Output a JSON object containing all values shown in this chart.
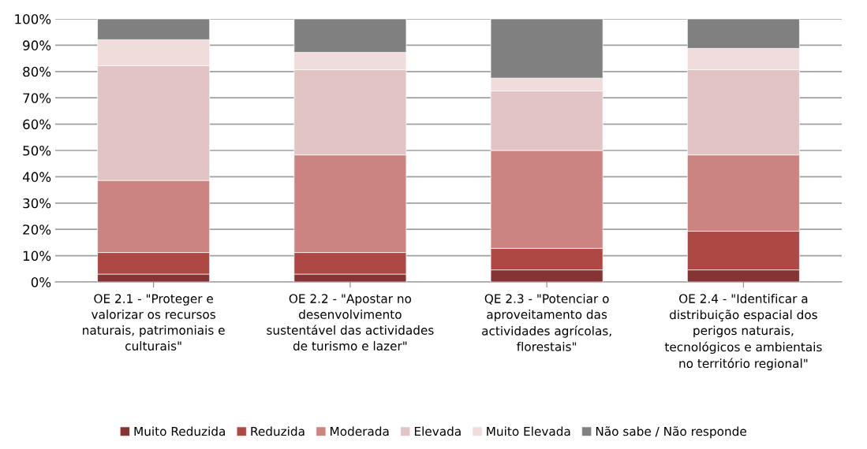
{
  "chart_data": {
    "type": "bar",
    "stacked": true,
    "categories": [
      "OE 2.1 - \"Proteger e valorizar os recursos naturais, patrimoniais e culturais\"",
      "OE 2.2 - \"Apostar no desenvolvimento sustentável das actividades de turismo e lazer\"",
      "QE 2.3 - \"Potenciar o aproveitamento das actividades agrícolas, florestais\"",
      "OE 2.4 - \"Identificar a distribuição espacial dos perigos naturais, tecnológicos e ambientais no território regional\""
    ],
    "series": [
      {
        "name": "Muito Reduzida",
        "color": "#853333",
        "values": [
          3.0,
          3.0,
          4.6,
          4.6
        ]
      },
      {
        "name": "Reduzida",
        "color": "#ae4845",
        "values": [
          8.2,
          8.2,
          8.2,
          14.7
        ]
      },
      {
        "name": "Moderada",
        "color": "#cc8481",
        "values": [
          27.4,
          37.1,
          37.2,
          29.0
        ]
      },
      {
        "name": "Elevada",
        "color": "#e2c4c5",
        "values": [
          43.6,
          32.4,
          22.6,
          32.4
        ]
      },
      {
        "name": "Muito Elevada",
        "color": "#f1dcdc",
        "values": [
          9.9,
          6.6,
          4.9,
          8.1
        ]
      },
      {
        "name": "Não sabe / Não responde",
        "color": "#808080",
        "values": [
          7.9,
          12.7,
          22.5,
          11.2
        ]
      }
    ],
    "ylim": [
      0,
      100
    ],
    "yticks": [
      {
        "value": 0,
        "label": "0%"
      },
      {
        "value": 10,
        "label": "10%"
      },
      {
        "value": 20,
        "label": "20%"
      },
      {
        "value": 30,
        "label": "30%"
      },
      {
        "value": 40,
        "label": "40%"
      },
      {
        "value": 50,
        "label": "50%"
      },
      {
        "value": 60,
        "label": "60%"
      },
      {
        "value": 70,
        "label": "70%"
      },
      {
        "value": 80,
        "label": "80%"
      },
      {
        "value": 90,
        "label": "90%"
      },
      {
        "value": 100,
        "label": "100%"
      }
    ],
    "grid": "y",
    "legend": "bottom"
  }
}
